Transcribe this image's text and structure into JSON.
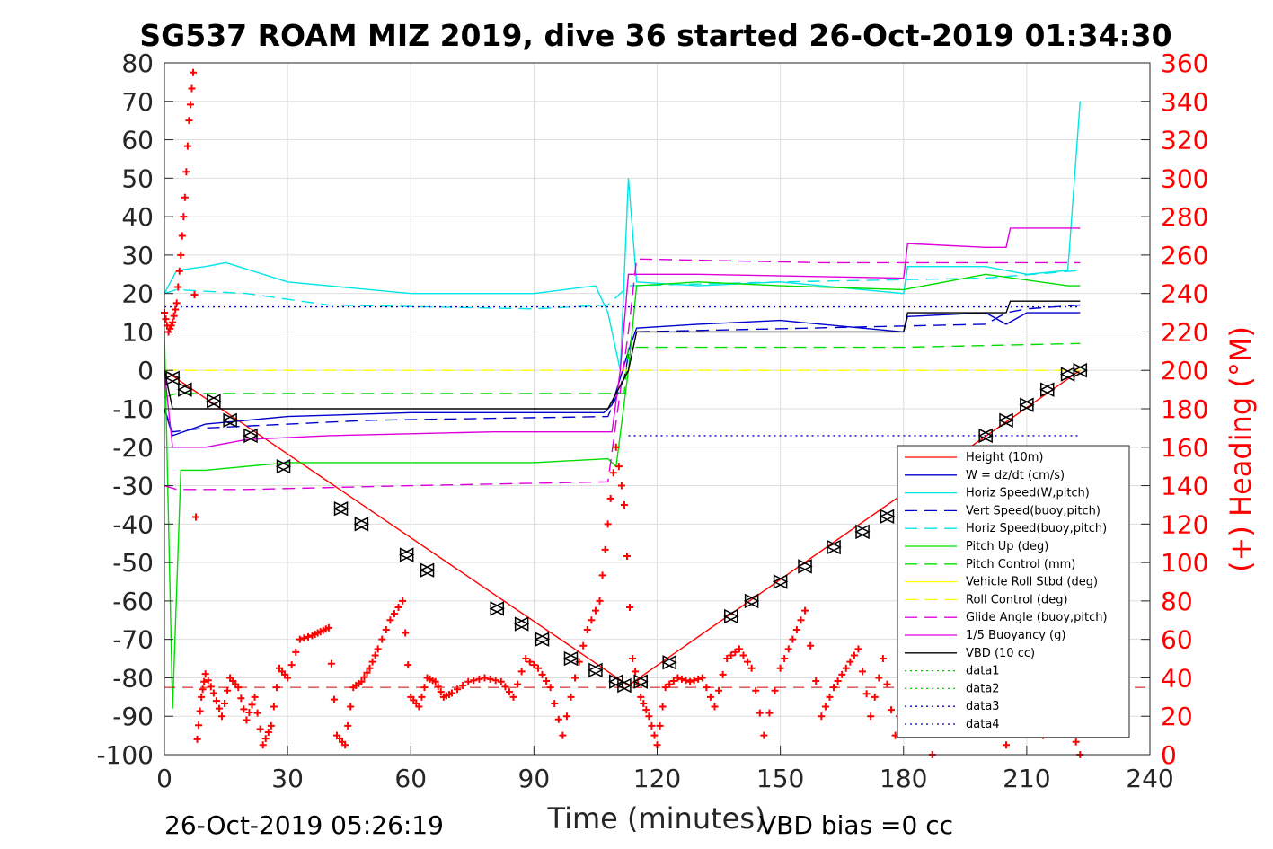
{
  "title": "SG537 ROAM MIZ 2019, dive 36 started 26-Oct-2019 01:34:30",
  "footer_left": "26-Oct-2019 05:26:19",
  "footer_right": "VBD bias =0 cc",
  "chart_data": {
    "type": "line",
    "xlabel": "Time (minutes)",
    "ylabel_right": "(+) Heading (°M)",
    "xlim": [
      0,
      240
    ],
    "ylim_left": [
      -100,
      80
    ],
    "ylim_right": [
      0,
      360
    ],
    "xticks": [
      0,
      30,
      60,
      90,
      120,
      150,
      180,
      210,
      240
    ],
    "yticks_left": [
      80,
      70,
      60,
      50,
      40,
      30,
      20,
      10,
      0,
      -10,
      -20,
      -30,
      -40,
      -50,
      -60,
      -70,
      -80,
      -90,
      -100
    ],
    "yticks_right": [
      360,
      340,
      320,
      300,
      280,
      260,
      240,
      220,
      200,
      180,
      160,
      140,
      120,
      100,
      80,
      60,
      40,
      20,
      0
    ],
    "grid": true,
    "legend_position": "lower-right",
    "legend": [
      {
        "label": "Height (10m)",
        "color": "#ff0000",
        "dash": "solid"
      },
      {
        "label": "W = dz/dt (cm/s)",
        "color": "#0000cc",
        "dash": "solid"
      },
      {
        "label": "Horiz Speed(W,pitch)",
        "color": "#00e5e5",
        "dash": "solid"
      },
      {
        "label": "Vert Speed(buoy,pitch)",
        "color": "#0000cc",
        "dash": "dashed"
      },
      {
        "label": "Horiz Speed(buoy,pitch)",
        "color": "#00e5e5",
        "dash": "dashed"
      },
      {
        "label": "Pitch Up (deg)",
        "color": "#00dd00",
        "dash": "solid"
      },
      {
        "label": "Pitch Control (mm)",
        "color": "#00dd00",
        "dash": "dashed"
      },
      {
        "label": "Vehicle Roll Stbd (deg)",
        "color": "#ffff00",
        "dash": "solid"
      },
      {
        "label": "Roll Control (deg)",
        "color": "#ffff00",
        "dash": "dashed"
      },
      {
        "label": "Glide Angle (buoy,pitch)",
        "color": "#dd00dd",
        "dash": "dashed"
      },
      {
        "label": "1/5 Buoyancy (g)",
        "color": "#dd00dd",
        "dash": "solid"
      },
      {
        "label": "VBD (10 cc)",
        "color": "#000000",
        "dash": "solid"
      },
      {
        "label": "data1",
        "color": "#00cc00",
        "dash": "dotted"
      },
      {
        "label": "data2",
        "color": "#00cc00",
        "dash": "dotted"
      },
      {
        "label": "data3",
        "color": "#0000cc",
        "dash": "dotted"
      },
      {
        "label": "data4",
        "color": "#0000cc",
        "dash": "dotted"
      }
    ],
    "series": [
      {
        "name": "Height (10m)",
        "x": [
          0,
          113,
          223
        ],
        "y": [
          0,
          -82,
          0
        ]
      },
      {
        "name": "W = dz/dt (cm/s)",
        "x": [
          0,
          2,
          10,
          30,
          60,
          90,
          107,
          109,
          111,
          113,
          115,
          130,
          150,
          170,
          180,
          181,
          200,
          205,
          210,
          220,
          223
        ],
        "y": [
          -10,
          -17,
          -14,
          -12,
          -11,
          -11,
          -11,
          -9,
          -2,
          5,
          11,
          12,
          13,
          11,
          10,
          14,
          15,
          12,
          15,
          15,
          15
        ]
      },
      {
        "name": "Horiz Speed(W,pitch)",
        "x": [
          0,
          3,
          10,
          15,
          30,
          60,
          90,
          105,
          108,
          111,
          113,
          115,
          130,
          150,
          180,
          181,
          200,
          210,
          220,
          223
        ],
        "y": [
          20,
          26,
          27,
          28,
          23,
          20,
          20,
          22,
          15,
          0,
          50,
          23,
          22,
          23,
          20,
          27,
          27,
          25,
          26,
          70
        ]
      },
      {
        "name": "Vert Speed(buoy,pitch)",
        "x": [
          0,
          2,
          10,
          50,
          108,
          112,
          114,
          200,
          205,
          210,
          223
        ],
        "y": [
          -10,
          -16,
          -15,
          -13,
          -12,
          -2,
          10,
          12,
          15,
          16,
          17
        ]
      },
      {
        "name": "Horiz Speed(buoy,pitch)",
        "x": [
          0,
          3,
          20,
          40,
          90,
          108,
          113,
          150,
          200,
          223
        ],
        "y": [
          20,
          21,
          20,
          17,
          16,
          17,
          22,
          23,
          24,
          26
        ]
      },
      {
        "name": "Pitch Up (deg)",
        "x": [
          0,
          2,
          4,
          10,
          30,
          60,
          90,
          108,
          110,
          113,
          115,
          130,
          150,
          180,
          200,
          220,
          223
        ],
        "y": [
          10,
          -88,
          -26,
          -26,
          -24,
          -24,
          -24,
          -23,
          -25,
          0,
          22,
          23,
          22,
          21,
          25,
          22,
          22
        ]
      },
      {
        "name": "Pitch Control (mm)",
        "x": [
          0,
          3,
          112,
          113,
          180,
          223
        ],
        "y": [
          -7,
          -6,
          -6,
          6,
          6,
          7
        ]
      },
      {
        "name": "Roll Control (deg)",
        "x": [
          0,
          223
        ],
        "y": [
          0,
          0
        ]
      },
      {
        "name": "Glide Angle (buoy,pitch)",
        "x": [
          0,
          3,
          20,
          60,
          108,
          113,
          115,
          160,
          200,
          223
        ],
        "y": [
          -30,
          -31,
          -31,
          -30,
          -29,
          10,
          29,
          28,
          28,
          28
        ]
      },
      {
        "name": "1/5 Buoyancy (g)",
        "x": [
          0,
          2,
          10,
          20,
          40,
          80,
          109,
          111,
          113,
          130,
          180,
          181,
          200,
          205,
          206,
          223
        ],
        "y": [
          0,
          -20,
          -20,
          -18,
          -17,
          -16,
          -16,
          0,
          25,
          25,
          24,
          33,
          32,
          32,
          37,
          37
        ]
      },
      {
        "name": "VBD (10 cc)",
        "x": [
          0,
          2,
          108,
          113,
          115,
          180,
          181,
          205,
          206,
          223
        ],
        "y": [
          0,
          -10,
          -10,
          0,
          10,
          10,
          15,
          15,
          18,
          18
        ]
      },
      {
        "name": "data3",
        "x": [
          0,
          223
        ],
        "y": [
          16.5,
          16.5
        ]
      },
      {
        "name": "data4",
        "x": [
          113,
          223
        ],
        "y": [
          -17,
          -17
        ]
      }
    ],
    "heading": {
      "name": "(+) Heading (°M)",
      "x": [
        0,
        1,
        2,
        3,
        4,
        5,
        6,
        7,
        8,
        9,
        10,
        12,
        14,
        16,
        18,
        20,
        22,
        24,
        26,
        28,
        30,
        33,
        36,
        38,
        40,
        42,
        44,
        46,
        48,
        50,
        52,
        55,
        58,
        60,
        62,
        64,
        66,
        68,
        70,
        74,
        78,
        82,
        85,
        88,
        91,
        94,
        97,
        100,
        103,
        106,
        108,
        110,
        112,
        114,
        116,
        118,
        120,
        122,
        125,
        128,
        131,
        134,
        137,
        140,
        143,
        146,
        150,
        153,
        156,
        160,
        163,
        166,
        169,
        172,
        175,
        178,
        181,
        184,
        187,
        190,
        193,
        196,
        199,
        202,
        205,
        208,
        211,
        214,
        217,
        220,
        223
      ],
      "y": [
        230,
        220,
        225,
        235,
        260,
        290,
        330,
        355,
        8,
        30,
        42,
        32,
        20,
        40,
        35,
        18,
        30,
        5,
        15,
        45,
        40,
        60,
        62,
        64,
        66,
        10,
        5,
        35,
        38,
        45,
        55,
        70,
        80,
        30,
        25,
        40,
        38,
        30,
        32,
        38,
        40,
        38,
        30,
        50,
        45,
        35,
        10,
        40,
        65,
        80,
        120,
        160,
        130,
        50,
        30,
        20,
        5,
        35,
        40,
        38,
        40,
        25,
        50,
        55,
        45,
        10,
        45,
        60,
        75,
        20,
        35,
        45,
        55,
        20,
        50,
        10,
        40,
        45,
        0,
        35,
        45,
        30,
        40,
        30,
        5,
        35,
        40,
        10,
        30,
        20,
        0
      ]
    },
    "markers": {
      "x": [
        2,
        5,
        12,
        16,
        21,
        29,
        43,
        48,
        59,
        64,
        81,
        87,
        92,
        99,
        105,
        110,
        112,
        116,
        123,
        138,
        143,
        150,
        156,
        163,
        170,
        176,
        200,
        205,
        210,
        215,
        220,
        223
      ],
      "y": [
        -2,
        -5,
        -8,
        -13,
        -17,
        -25,
        -36,
        -40,
        -48,
        -52,
        -62,
        -66,
        -70,
        -75,
        -78,
        -81,
        -82,
        -81,
        -76,
        -64,
        -60,
        -55,
        -51,
        -46,
        -42,
        -38,
        -17,
        -13,
        -9,
        -5,
        -1,
        0
      ]
    },
    "data_hline": {
      "name": "data1",
      "y": -82.5
    }
  }
}
